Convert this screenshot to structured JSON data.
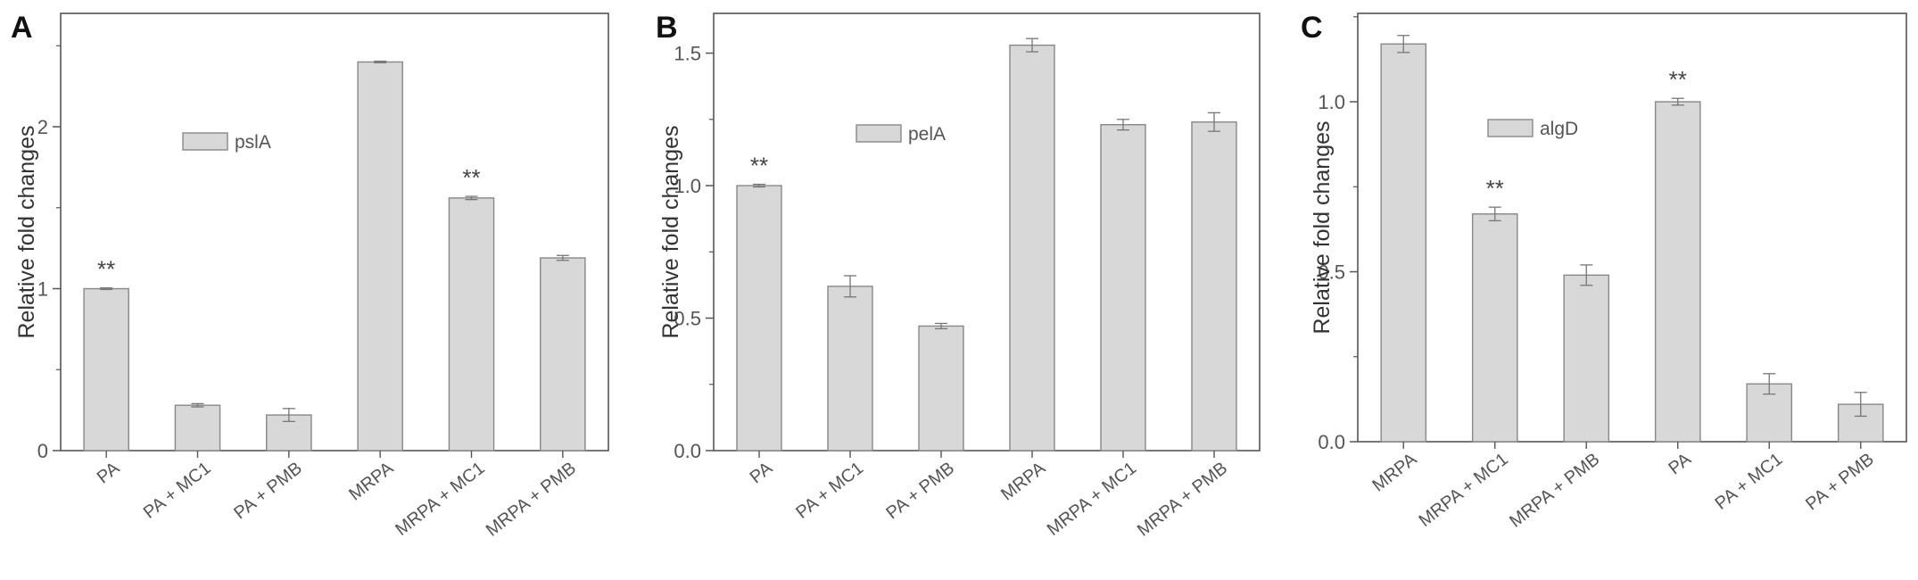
{
  "chart_data": [
    {
      "type": "bar",
      "panel": "A",
      "ylabel": "Relative fold changes",
      "legend": "pslA",
      "ylim": [
        0,
        2.7
      ],
      "yticks": [
        0,
        1,
        2
      ],
      "ytick_labels": [
        "0",
        "1",
        "2"
      ],
      "categories": [
        "PA",
        "PA + MC1",
        "PA + PMB",
        "MRPA",
        "MRPA + MC1",
        "MRPA + PMB"
      ],
      "values": [
        1.0,
        0.28,
        0.22,
        2.4,
        1.56,
        1.19
      ],
      "errors": [
        0.005,
        0.01,
        0.04,
        0.005,
        0.01,
        0.015
      ],
      "annotations": [
        "**",
        "",
        "",
        "",
        "**",
        ""
      ]
    },
    {
      "type": "bar",
      "panel": "B",
      "ylabel": "Relative fold changes",
      "legend": "pelA",
      "ylim": [
        0,
        1.65
      ],
      "yticks": [
        0,
        0.5,
        1.0,
        1.5
      ],
      "ytick_labels": [
        "0.0",
        "0.5",
        "1.0",
        "1.5"
      ],
      "categories": [
        "PA",
        "PA + MC1",
        "PA + PMB",
        "MRPA",
        "MRPA + MC1",
        "MRPA + PMB"
      ],
      "values": [
        1.0,
        0.62,
        0.47,
        1.53,
        1.23,
        1.24
      ],
      "errors": [
        0.005,
        0.04,
        0.01,
        0.025,
        0.02,
        0.035
      ],
      "annotations": [
        "**",
        "",
        "",
        "",
        "",
        ""
      ]
    },
    {
      "type": "bar",
      "panel": "C",
      "ylabel": "Relative fold changes",
      "legend": "algD",
      "ylim": [
        0,
        1.26
      ],
      "yticks": [
        0,
        0.5,
        1.0
      ],
      "ytick_labels": [
        "0.0",
        "0.5",
        "1.0"
      ],
      "categories": [
        "MRPA",
        "MRPA + MC1",
        "MRPA + PMB",
        "PA",
        "PA + MC1",
        "PA + PMB"
      ],
      "values": [
        1.17,
        0.67,
        0.49,
        1.0,
        0.17,
        0.11
      ],
      "errors": [
        0.025,
        0.02,
        0.03,
        0.01,
        0.03,
        0.035
      ],
      "annotations": [
        "",
        "**",
        "",
        "**",
        "",
        ""
      ]
    }
  ],
  "colors": {
    "bar_fill": "#d8d8d8",
    "bar_stroke": "#888888",
    "axis": "#555555",
    "error": "#777777"
  }
}
